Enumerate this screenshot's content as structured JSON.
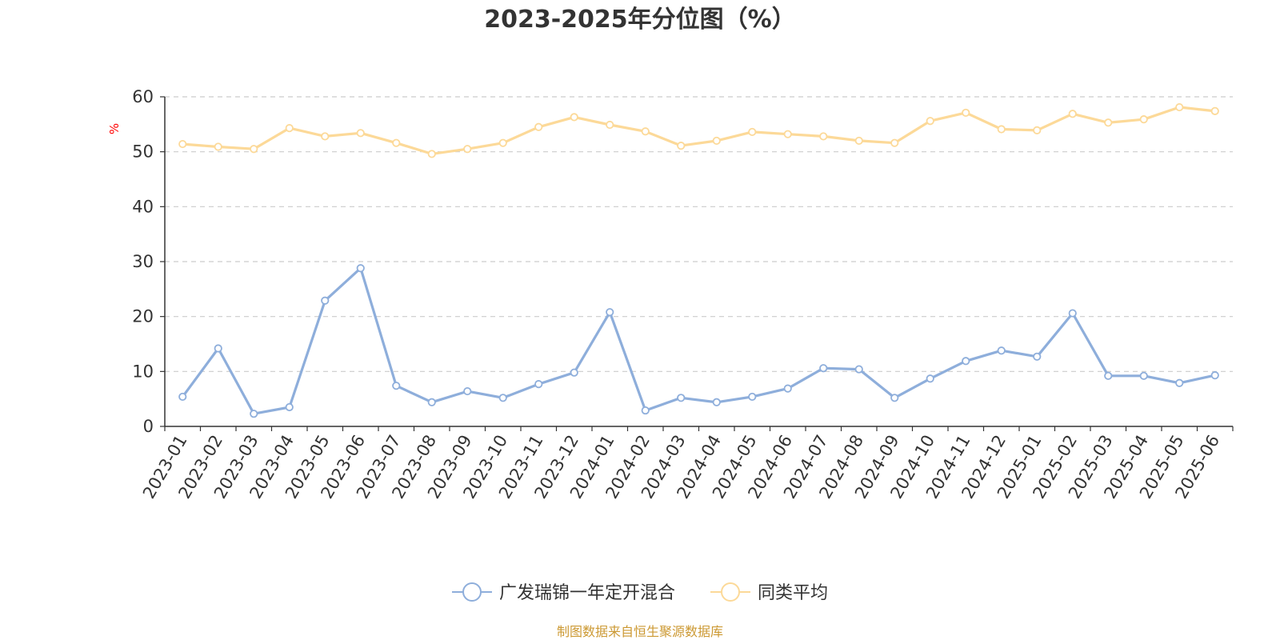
{
  "chart_data": {
    "type": "line",
    "title": "2023-2025年分位图（%）",
    "y_unit": "%",
    "ylim": [
      0,
      60
    ],
    "y_ticks": [
      0,
      10,
      20,
      30,
      40,
      50,
      60
    ],
    "grid": true,
    "legend_position": "bottom-center",
    "categories": [
      "2023-01",
      "2023-02",
      "2023-03",
      "2023-04",
      "2023-05",
      "2023-06",
      "2023-07",
      "2023-08",
      "2023-09",
      "2023-10",
      "2023-11",
      "2023-12",
      "2024-01",
      "2024-02",
      "2024-03",
      "2024-04",
      "2024-05",
      "2024-06",
      "2024-07",
      "2024-08",
      "2024-09",
      "2024-10",
      "2024-11",
      "2024-12",
      "2025-01",
      "2025-02",
      "2025-03",
      "2025-04",
      "2025-05",
      "2025-06"
    ],
    "series": [
      {
        "name": "广发瑞锦一年定开混合",
        "color": "#8eaedb",
        "values": [
          5.4,
          14.2,
          2.3,
          3.5,
          22.9,
          28.8,
          7.4,
          4.4,
          6.4,
          5.2,
          7.7,
          9.8,
          20.8,
          2.9,
          5.2,
          4.4,
          5.4,
          6.9,
          10.6,
          10.4,
          5.2,
          8.7,
          11.9,
          13.8,
          12.7,
          20.6,
          9.2,
          9.2,
          7.9,
          9.3
        ]
      },
      {
        "name": "同类平均",
        "color": "#fcd998",
        "values": [
          51.4,
          50.9,
          50.5,
          54.3,
          52.8,
          53.4,
          51.6,
          49.6,
          50.5,
          51.6,
          54.5,
          56.3,
          54.9,
          53.7,
          51.1,
          52.0,
          53.6,
          53.2,
          52.8,
          52.0,
          51.6,
          55.6,
          57.1,
          54.1,
          53.9,
          56.9,
          55.3,
          55.9,
          58.1,
          57.4
        ]
      }
    ]
  },
  "footer": {
    "source_text": "制图数据来自恒生聚源数据库"
  },
  "colors": {
    "axis": "#333333",
    "grid": "#cccccc",
    "unit_label": "#ff0000",
    "footer": "#cc9933"
  }
}
